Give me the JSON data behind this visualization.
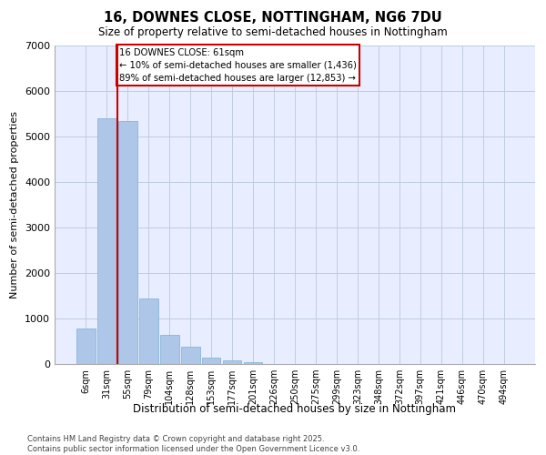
{
  "title_line1": "16, DOWNES CLOSE, NOTTINGHAM, NG6 7DU",
  "title_line2": "Size of property relative to semi-detached houses in Nottingham",
  "xlabel": "Distribution of semi-detached houses by size in Nottingham",
  "ylabel": "Number of semi-detached properties",
  "categories": [
    "6sqm",
    "31sqm",
    "55sqm",
    "79sqm",
    "104sqm",
    "128sqm",
    "153sqm",
    "177sqm",
    "201sqm",
    "226sqm",
    "250sqm",
    "275sqm",
    "299sqm",
    "323sqm",
    "348sqm",
    "372sqm",
    "397sqm",
    "421sqm",
    "446sqm",
    "470sqm",
    "494sqm"
  ],
  "values": [
    780,
    5400,
    5350,
    1450,
    650,
    380,
    150,
    90,
    50,
    0,
    0,
    0,
    0,
    0,
    0,
    0,
    0,
    0,
    0,
    0,
    0
  ],
  "bar_color": "#aec6e8",
  "bar_edge_color": "#7bafd4",
  "property_line_x": 1.5,
  "annotation_text_line1": "16 DOWNES CLOSE: 61sqm",
  "annotation_text_line2": "← 10% of semi-detached houses are smaller (1,436)",
  "annotation_text_line3": "89% of semi-detached houses are larger (12,853) →",
  "annotation_box_color": "#cc0000",
  "ylim": [
    0,
    7000
  ],
  "yticks": [
    0,
    1000,
    2000,
    3000,
    4000,
    5000,
    6000,
    7000
  ],
  "background_color": "#e8eeff",
  "grid_color": "#c0ccdd",
  "footer_line1": "Contains HM Land Registry data © Crown copyright and database right 2025.",
  "footer_line2": "Contains public sector information licensed under the Open Government Licence v3.0."
}
